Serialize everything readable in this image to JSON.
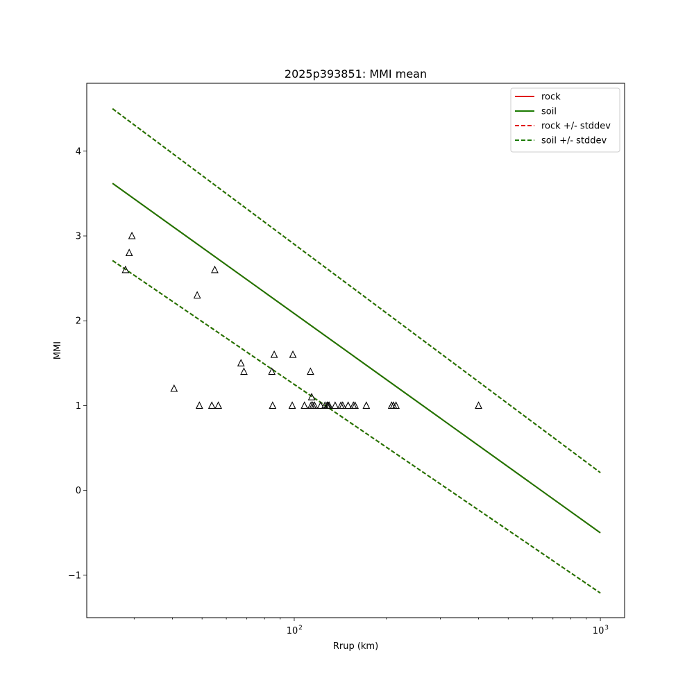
{
  "chart_data": {
    "type": "line",
    "title": "2025p393851: MMI mean",
    "xlabel": "Rrup (km)",
    "ylabel": "MMI",
    "xscale": "log",
    "xlim": [
      21,
      1200
    ],
    "ylim": [
      -1.5,
      4.8
    ],
    "grid": false,
    "legend_position": "top-right",
    "xticks": [
      {
        "value": 100,
        "label": "10",
        "exp": "2"
      },
      {
        "value": 1000,
        "label": "10",
        "exp": "3"
      }
    ],
    "yticks": [
      {
        "value": -1,
        "label": "−1"
      },
      {
        "value": 0,
        "label": "0"
      },
      {
        "value": 1,
        "label": "1"
      },
      {
        "value": 2,
        "label": "2"
      },
      {
        "value": 3,
        "label": "3"
      },
      {
        "value": 4,
        "label": "4"
      }
    ],
    "series": [
      {
        "name": "rock",
        "color": "#e00000",
        "dash": false,
        "x": [
          25.5,
          1000
        ],
        "y": [
          3.62,
          -0.5
        ]
      },
      {
        "name": "soil",
        "color": "#1a7a00",
        "dash": false,
        "x": [
          25.5,
          1000
        ],
        "y": [
          3.62,
          -0.5
        ]
      },
      {
        "name": "rock +/- stddev",
        "color": "#e00000",
        "dash": true,
        "x": [
          25.5,
          1000
        ],
        "y": [
          4.5,
          0.21
        ]
      },
      {
        "name": "soil +/- stddev",
        "color": "#1a7a00",
        "dash": true,
        "x": [
          25.5,
          1000
        ],
        "y": [
          4.5,
          0.21
        ]
      }
    ],
    "band_lower": [
      {
        "name": "rock +/- stddev",
        "color": "#e00000",
        "x": [
          25.5,
          1000
        ],
        "y": [
          2.71,
          -1.21
        ]
      },
      {
        "name": "soil +/- stddev",
        "color": "#1a7a00",
        "x": [
          25.5,
          1000
        ],
        "y": [
          2.71,
          -1.21
        ]
      }
    ],
    "observations": {
      "marker": "triangle-open",
      "color": "#000000",
      "points": [
        [
          28.1,
          2.6
        ],
        [
          28.9,
          2.8
        ],
        [
          29.5,
          3.0
        ],
        [
          40.5,
          1.2
        ],
        [
          48.2,
          2.3
        ],
        [
          49.0,
          1.0
        ],
        [
          53.8,
          1.0
        ],
        [
          55.0,
          2.6
        ],
        [
          56.5,
          1.0
        ],
        [
          67.0,
          1.5
        ],
        [
          68.5,
          1.4
        ],
        [
          84.5,
          1.4
        ],
        [
          85.0,
          1.0
        ],
        [
          86.0,
          1.6
        ],
        [
          98.5,
          1.0
        ],
        [
          99.0,
          1.6
        ],
        [
          108.0,
          1.0
        ],
        [
          113.0,
          1.4
        ],
        [
          113.5,
          1.0
        ],
        [
          114.0,
          1.1
        ],
        [
          115.0,
          1.0
        ],
        [
          116.5,
          1.0
        ],
        [
          122.0,
          1.0
        ],
        [
          126.0,
          1.0
        ],
        [
          128.0,
          1.0
        ],
        [
          129.0,
          1.0
        ],
        [
          130.0,
          1.0
        ],
        [
          136.0,
          1.0
        ],
        [
          142.0,
          1.0
        ],
        [
          144.0,
          1.0
        ],
        [
          150.0,
          1.0
        ],
        [
          156.0,
          1.0
        ],
        [
          158.0,
          1.0
        ],
        [
          172.0,
          1.0
        ],
        [
          208.0,
          1.0
        ],
        [
          211.0,
          1.0
        ],
        [
          215.0,
          1.0
        ],
        [
          400.0,
          1.0
        ]
      ]
    }
  }
}
